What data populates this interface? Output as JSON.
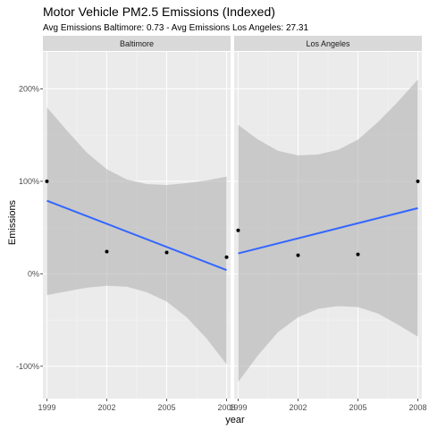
{
  "chart_data": {
    "type": "scatter",
    "title": "Motor Vehicle PM2.5 Emissions (Indexed)",
    "subtitle": "Avg Emissions Baltimore: 0.73 - Avg Emissions Los Angeles: 27.31",
    "xlabel": "year",
    "ylabel": "Emissions",
    "x_ticks": [
      1999,
      2002,
      2005,
      2008
    ],
    "y_ticks": [
      -1,
      0,
      1,
      2
    ],
    "y_tick_labels": [
      "-100%",
      "0%",
      "100%",
      "200%"
    ],
    "xlim": [
      1998.8,
      2008.2
    ],
    "ylim": [
      -1.35,
      2.4
    ],
    "grid": true,
    "colors": {
      "panel_bg": "#ebebeb",
      "grid_major": "#ffffff",
      "strip_bg": "#d9d9d9",
      "ribbon": "#b3b3b3",
      "fit_line": "#3366ff",
      "point": "#000000"
    },
    "panels": [
      {
        "label": "Baltimore",
        "points": [
          {
            "x": 1999,
            "y": 1.0
          },
          {
            "x": 2002,
            "y": 0.24
          },
          {
            "x": 2005,
            "y": 0.23
          },
          {
            "x": 2008,
            "y": 0.18
          }
        ],
        "fit": [
          {
            "x": 1999,
            "y": 0.79
          },
          {
            "x": 2008,
            "y": 0.04
          }
        ],
        "band_lower": [
          {
            "x": 1999,
            "y": -0.23
          },
          {
            "x": 2000,
            "y": -0.19
          },
          {
            "x": 2001,
            "y": -0.15
          },
          {
            "x": 2002,
            "y": -0.13
          },
          {
            "x": 2003,
            "y": -0.14
          },
          {
            "x": 2004,
            "y": -0.2
          },
          {
            "x": 2005,
            "y": -0.3
          },
          {
            "x": 2006,
            "y": -0.47
          },
          {
            "x": 2007,
            "y": -0.7
          },
          {
            "x": 2008,
            "y": -0.98
          }
        ],
        "band_upper": [
          {
            "x": 1999,
            "y": 1.8
          },
          {
            "x": 2000,
            "y": 1.55
          },
          {
            "x": 2001,
            "y": 1.31
          },
          {
            "x": 2002,
            "y": 1.13
          },
          {
            "x": 2003,
            "y": 1.02
          },
          {
            "x": 2004,
            "y": 0.97
          },
          {
            "x": 2005,
            "y": 0.96
          },
          {
            "x": 2006,
            "y": 0.98
          },
          {
            "x": 2007,
            "y": 1.01
          },
          {
            "x": 2008,
            "y": 1.05
          }
        ]
      },
      {
        "label": "Los Angeles",
        "points": [
          {
            "x": 1999,
            "y": 0.47
          },
          {
            "x": 2002,
            "y": 0.2
          },
          {
            "x": 2005,
            "y": 0.21
          },
          {
            "x": 2008,
            "y": 1.0
          }
        ],
        "fit": [
          {
            "x": 1999,
            "y": 0.22
          },
          {
            "x": 2008,
            "y": 0.71
          }
        ],
        "band_lower": [
          {
            "x": 1999,
            "y": -1.17
          },
          {
            "x": 2000,
            "y": -0.88
          },
          {
            "x": 2001,
            "y": -0.63
          },
          {
            "x": 2002,
            "y": -0.47
          },
          {
            "x": 2003,
            "y": -0.38
          },
          {
            "x": 2004,
            "y": -0.35
          },
          {
            "x": 2005,
            "y": -0.36
          },
          {
            "x": 2006,
            "y": -0.43
          },
          {
            "x": 2007,
            "y": -0.55
          },
          {
            "x": 2008,
            "y": -0.68
          }
        ],
        "band_upper": [
          {
            "x": 1999,
            "y": 1.61
          },
          {
            "x": 2000,
            "y": 1.45
          },
          {
            "x": 2001,
            "y": 1.33
          },
          {
            "x": 2002,
            "y": 1.28
          },
          {
            "x": 2003,
            "y": 1.29
          },
          {
            "x": 2004,
            "y": 1.34
          },
          {
            "x": 2005,
            "y": 1.45
          },
          {
            "x": 2006,
            "y": 1.64
          },
          {
            "x": 2007,
            "y": 1.86
          },
          {
            "x": 2008,
            "y": 2.1
          }
        ]
      }
    ]
  }
}
